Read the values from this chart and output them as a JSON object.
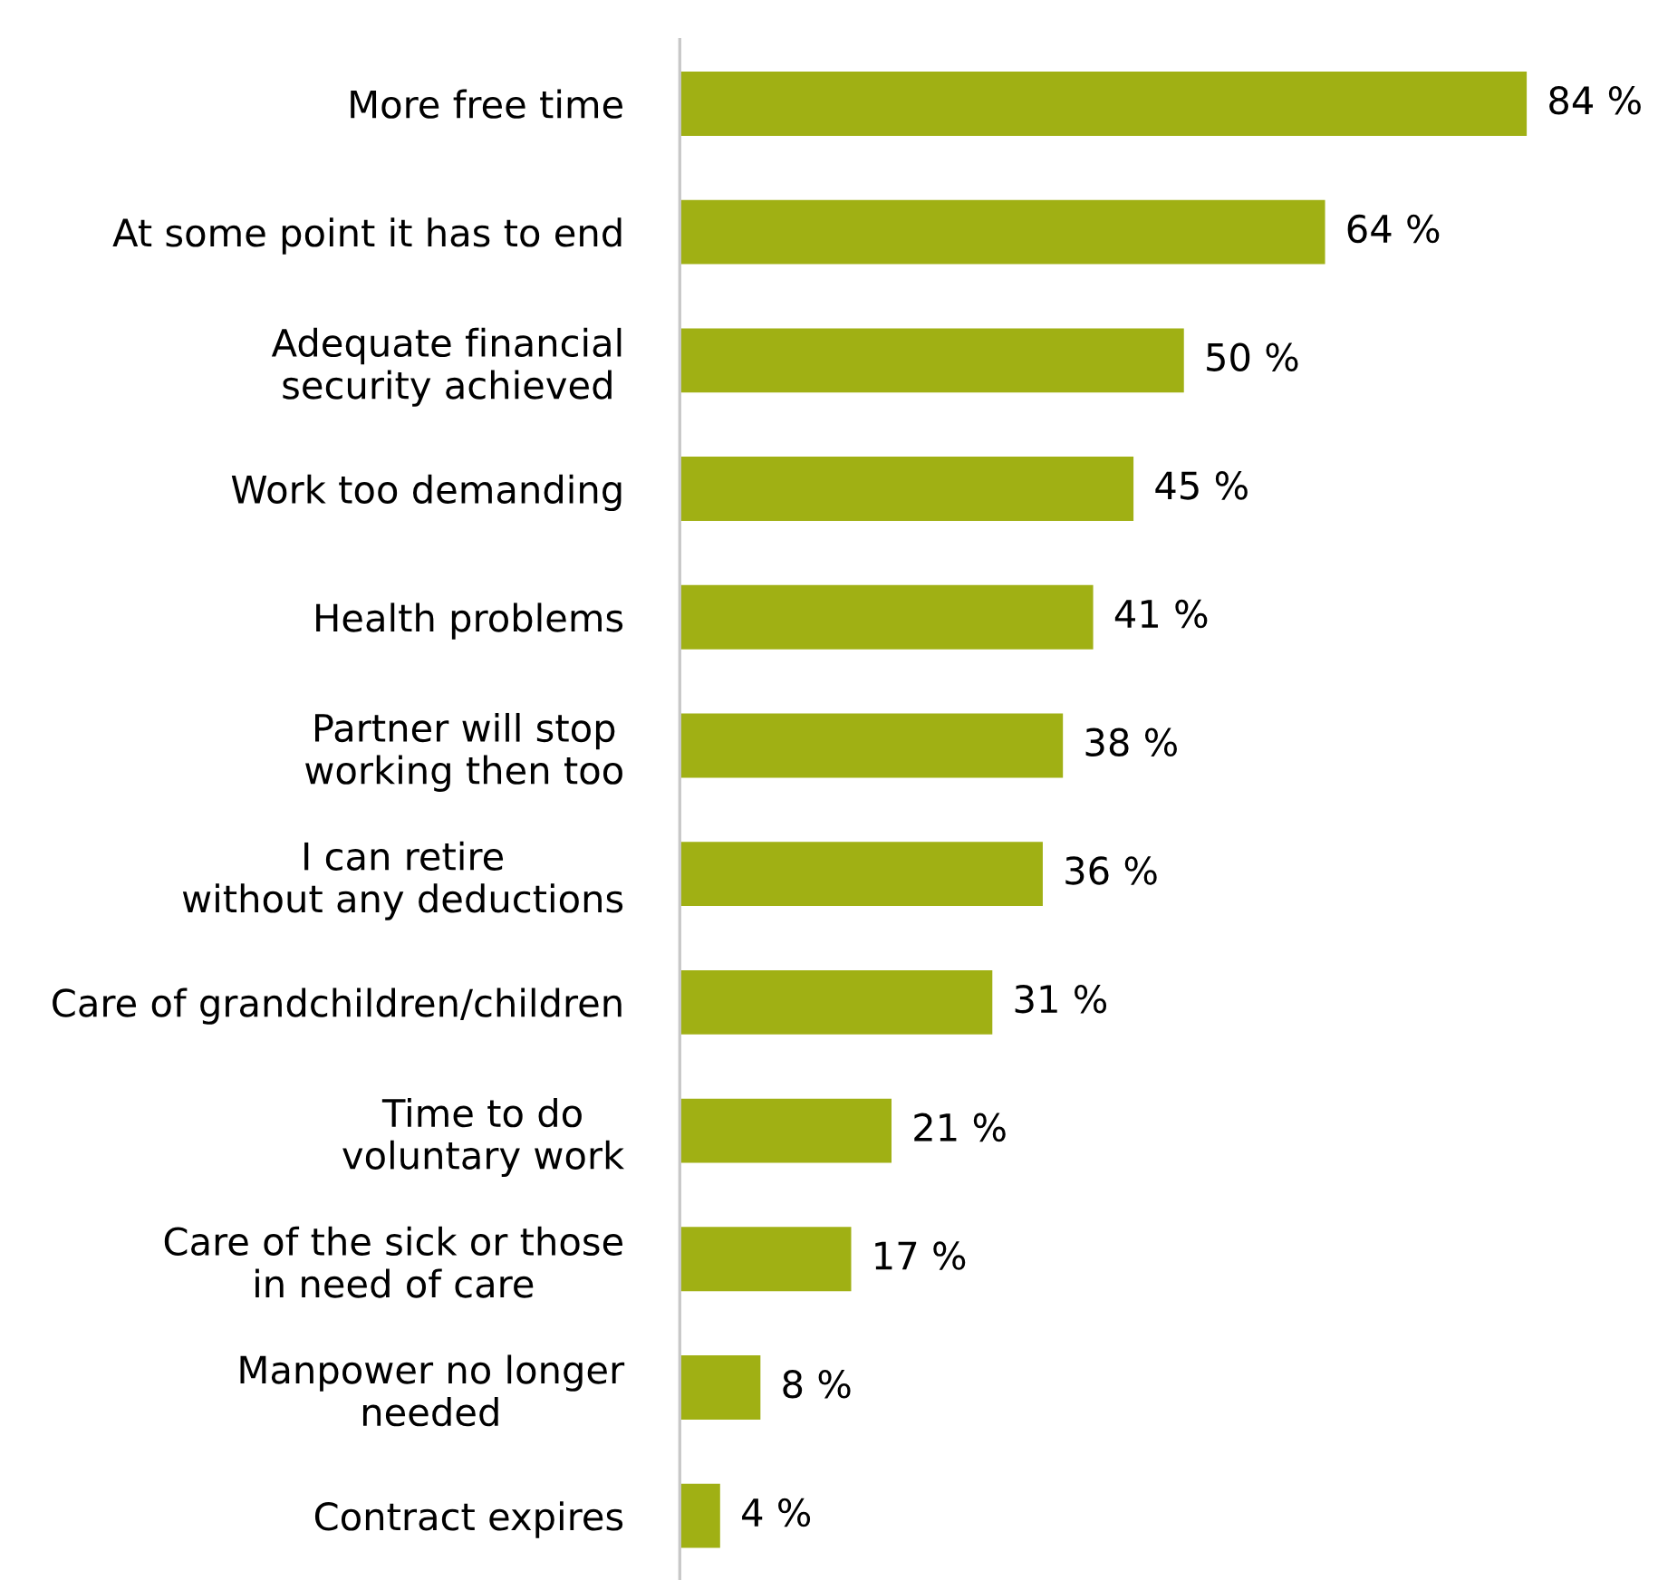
{
  "chart_data": {
    "type": "bar",
    "orientation": "horizontal",
    "categories": [
      "More free time",
      "At some point it has to end",
      "Adequate financial\nsecurity achieved",
      "Work too demanding",
      "Health problems",
      "Partner will stop\nworking then too",
      "I can retire\nwithout any deductions",
      "Care of grandchildren/children",
      "Time to do\nvoluntary work",
      "Care of the sick or those\nin need of care",
      "Manpower no longer\nneeded",
      "Contract expires"
    ],
    "values": [
      84,
      64,
      50,
      45,
      41,
      38,
      36,
      31,
      21,
      17,
      8,
      4
    ],
    "value_labels": [
      "84 %",
      "64 %",
      "50 %",
      "45 %",
      "41 %",
      "38 %",
      "36 %",
      "31 %",
      "21 %",
      "17 %",
      "8 %",
      "4 %"
    ],
    "color": "#a0b014"
  }
}
